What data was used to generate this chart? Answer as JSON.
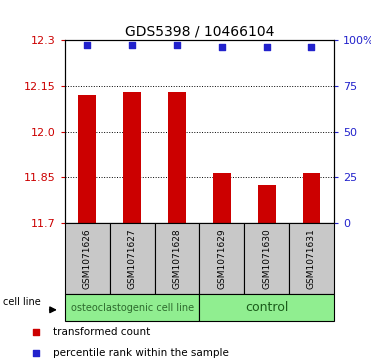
{
  "title": "GDS5398 / 10466104",
  "samples": [
    "GSM1071626",
    "GSM1071627",
    "GSM1071628",
    "GSM1071629",
    "GSM1071630",
    "GSM1071631"
  ],
  "bar_values": [
    12.12,
    12.13,
    12.13,
    11.865,
    11.825,
    11.865
  ],
  "percentile_values": [
    97,
    97,
    97,
    96,
    96,
    96
  ],
  "ylim": [
    11.7,
    12.3
  ],
  "yticks_left": [
    11.7,
    11.85,
    12.0,
    12.15,
    12.3
  ],
  "yticks_right": [
    0,
    25,
    50,
    75,
    100
  ],
  "y_right_labels": [
    "0",
    "25",
    "50",
    "75",
    "100%"
  ],
  "bar_color": "#cc0000",
  "dot_color": "#2222cc",
  "bar_bottom": 11.7,
  "groups": [
    {
      "label": "osteoclastogenic cell line",
      "n_samples": 3,
      "color": "#90ee90",
      "text_color": "#2d6a2d",
      "fontsize": 7
    },
    {
      "label": "control",
      "n_samples": 3,
      "color": "#90ee90",
      "text_color": "#1a5c1a",
      "fontsize": 9
    }
  ],
  "cell_line_label": "cell line",
  "legend_items": [
    {
      "color": "#cc0000",
      "label": "transformed count"
    },
    {
      "color": "#2222cc",
      "label": "percentile rank within the sample"
    }
  ],
  "left_tick_color": "#cc0000",
  "right_tick_color": "#2222cc",
  "background_label": "#c8c8c8",
  "bar_width": 0.4,
  "title_fontsize": 10,
  "tick_fontsize": 8,
  "sample_fontsize": 6.5,
  "legend_fontsize": 7.5
}
